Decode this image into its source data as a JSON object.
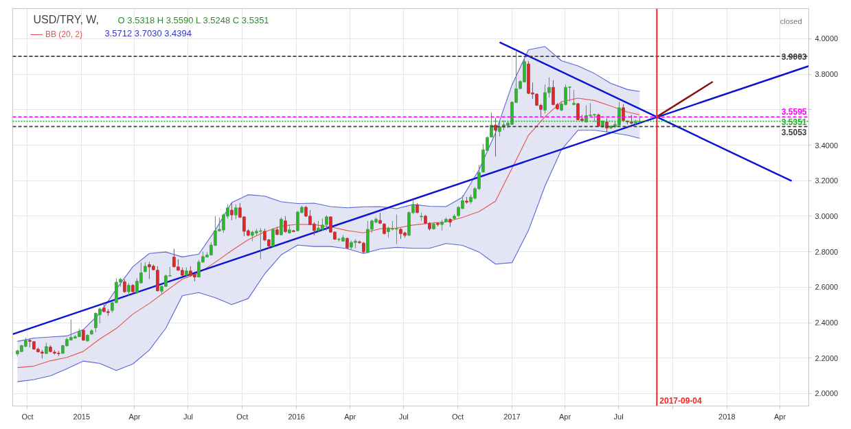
{
  "chart_data": {
    "type": "candlestick",
    "title": "USD/TRY, W,",
    "annotations": [
      "O 3.5318 H 3.5590 L 3.5248 C 3.5351",
      "3.5712 3.7030 3.4394",
      "closed"
    ],
    "x": [
      "2014-09-14",
      "2014-09-21",
      "2014-09-28",
      "2014-10-05",
      "2014-10-12",
      "2014-10-19",
      "2014-10-26",
      "2014-11-02",
      "2014-11-09",
      "2014-11-16",
      "2014-11-23",
      "2014-11-30",
      "2014-12-07",
      "2014-12-14",
      "2014-12-21",
      "2014-12-28",
      "2015-01-04",
      "2015-01-11",
      "2015-01-18",
      "2015-01-25",
      "2015-02-01",
      "2015-02-08",
      "2015-02-15",
      "2015-02-22",
      "2015-03-01",
      "2015-03-08",
      "2015-03-15",
      "2015-03-22",
      "2015-03-29",
      "2015-04-05",
      "2015-04-12",
      "2015-04-19",
      "2015-04-26",
      "2015-05-03",
      "2015-05-10",
      "2015-05-17",
      "2015-05-24",
      "2015-05-31",
      "2015-06-07",
      "2015-06-14",
      "2015-06-21",
      "2015-06-28",
      "2015-07-05",
      "2015-07-12",
      "2015-07-19",
      "2015-07-26",
      "2015-08-02",
      "2015-08-09",
      "2015-08-16",
      "2015-08-23",
      "2015-08-30",
      "2015-09-06",
      "2015-09-13",
      "2015-09-20",
      "2015-09-27",
      "2015-10-04",
      "2015-10-11",
      "2015-10-18",
      "2015-10-25",
      "2015-11-01",
      "2015-11-08",
      "2015-11-15",
      "2015-11-22",
      "2015-11-29",
      "2015-12-06",
      "2015-12-13",
      "2015-12-20",
      "2015-12-27",
      "2016-01-03",
      "2016-01-10",
      "2016-01-17",
      "2016-01-24",
      "2016-01-31",
      "2016-02-07",
      "2016-02-14",
      "2016-02-21",
      "2016-02-28",
      "2016-03-06",
      "2016-03-13",
      "2016-03-20",
      "2016-03-27",
      "2016-04-03",
      "2016-04-10",
      "2016-04-17",
      "2016-04-24",
      "2016-05-01",
      "2016-05-08",
      "2016-05-15",
      "2016-05-22",
      "2016-05-29",
      "2016-06-05",
      "2016-06-12",
      "2016-06-19",
      "2016-06-26",
      "2016-07-03",
      "2016-07-10",
      "2016-07-17",
      "2016-07-24",
      "2016-07-31",
      "2016-08-07",
      "2016-08-14",
      "2016-08-21",
      "2016-08-28",
      "2016-09-04",
      "2016-09-11",
      "2016-09-18",
      "2016-09-25",
      "2016-10-02",
      "2016-10-09",
      "2016-10-16",
      "2016-10-23",
      "2016-10-30",
      "2016-11-06",
      "2016-11-13",
      "2016-11-20",
      "2016-11-27",
      "2016-12-04",
      "2016-12-11",
      "2016-12-18",
      "2016-12-25",
      "2017-01-01",
      "2017-01-08",
      "2017-01-15",
      "2017-01-22",
      "2017-01-29",
      "2017-02-05",
      "2017-02-12",
      "2017-02-19",
      "2017-02-26",
      "2017-03-05",
      "2017-03-12",
      "2017-03-19",
      "2017-03-26",
      "2017-04-02",
      "2017-04-09",
      "2017-04-16",
      "2017-04-23",
      "2017-04-30",
      "2017-05-07",
      "2017-05-14",
      "2017-05-21",
      "2017-05-28",
      "2017-06-04",
      "2017-06-11",
      "2017-06-18",
      "2017-06-25",
      "2017-07-02",
      "2017-07-09",
      "2017-07-16",
      "2017-07-23",
      "2017-07-30",
      "2017-08-06"
    ],
    "ohlc": [
      [
        2.224,
        2.247,
        2.211,
        2.241
      ],
      [
        2.237,
        2.275,
        2.233,
        2.27
      ],
      [
        2.267,
        2.315,
        2.261,
        2.301
      ],
      [
        2.3,
        2.308,
        2.261,
        2.294
      ],
      [
        2.293,
        2.295,
        2.247,
        2.251
      ],
      [
        2.25,
        2.259,
        2.233,
        2.235
      ],
      [
        2.234,
        2.246,
        2.198,
        2.228
      ],
      [
        2.226,
        2.286,
        2.223,
        2.265
      ],
      [
        2.262,
        2.273,
        2.233,
        2.237
      ],
      [
        2.234,
        2.246,
        2.22,
        2.228
      ],
      [
        2.227,
        2.241,
        2.212,
        2.225
      ],
      [
        2.227,
        2.275,
        2.223,
        2.27
      ],
      [
        2.269,
        2.315,
        2.266,
        2.305
      ],
      [
        2.302,
        2.418,
        2.3,
        2.317
      ],
      [
        2.312,
        2.331,
        2.31,
        2.321
      ],
      [
        2.321,
        2.366,
        2.32,
        2.351
      ],
      [
        2.357,
        2.359,
        2.297,
        2.301
      ],
      [
        2.297,
        2.335,
        2.292,
        2.328
      ],
      [
        2.335,
        2.362,
        2.333,
        2.354
      ],
      [
        2.371,
        2.457,
        2.345,
        2.452
      ],
      [
        2.445,
        2.485,
        2.395,
        2.477
      ],
      [
        2.483,
        2.516,
        2.458,
        2.462
      ],
      [
        2.462,
        2.476,
        2.438,
        2.457
      ],
      [
        2.469,
        2.517,
        2.456,
        2.512
      ],
      [
        2.513,
        2.65,
        2.509,
        2.628
      ],
      [
        2.628,
        2.652,
        2.603,
        2.644
      ],
      [
        2.63,
        2.644,
        2.568,
        2.574
      ],
      [
        2.574,
        2.624,
        2.552,
        2.61
      ],
      [
        2.61,
        2.617,
        2.568,
        2.574
      ],
      [
        2.57,
        2.65,
        2.563,
        2.633
      ],
      [
        2.624,
        2.738,
        2.62,
        2.681
      ],
      [
        2.687,
        2.741,
        2.684,
        2.718
      ],
      [
        2.727,
        2.743,
        2.646,
        2.714
      ],
      [
        2.718,
        2.727,
        2.694,
        2.698
      ],
      [
        2.695,
        2.718,
        2.577,
        2.579
      ],
      [
        2.577,
        2.61,
        2.563,
        2.604
      ],
      [
        2.604,
        2.671,
        2.601,
        2.664
      ],
      [
        2.663,
        2.714,
        2.66,
        2.665
      ],
      [
        2.769,
        2.816,
        2.711,
        2.715
      ],
      [
        2.714,
        2.757,
        2.694,
        2.695
      ],
      [
        2.695,
        2.711,
        2.663,
        2.667
      ],
      [
        2.667,
        2.711,
        2.663,
        2.691
      ],
      [
        2.691,
        2.718,
        2.66,
        2.667
      ],
      [
        2.673,
        2.677,
        2.633,
        2.657
      ],
      [
        2.657,
        2.754,
        2.655,
        2.741
      ],
      [
        2.741,
        2.801,
        2.738,
        2.772
      ],
      [
        2.769,
        2.797,
        2.768,
        2.781
      ],
      [
        2.781,
        2.852,
        2.778,
        2.837
      ],
      [
        2.835,
        3.0,
        2.832,
        2.918
      ],
      [
        2.917,
        2.993,
        2.913,
        2.926
      ],
      [
        2.922,
        3.015,
        2.906,
        3.007
      ],
      [
        3.0,
        3.067,
        2.987,
        3.047
      ],
      [
        3.034,
        3.074,
        2.977,
        3.007
      ],
      [
        3.007,
        3.067,
        2.983,
        3.047
      ],
      [
        3.047,
        3.074,
        2.991,
        2.993
      ],
      [
        2.996,
        2.999,
        2.888,
        2.915
      ],
      [
        2.918,
        2.926,
        2.886,
        2.892
      ],
      [
        2.892,
        2.919,
        2.859,
        2.91
      ],
      [
        2.905,
        2.929,
        2.892,
        2.915
      ],
      [
        2.914,
        2.933,
        2.758,
        2.918
      ],
      [
        2.915,
        2.929,
        2.859,
        2.866
      ],
      [
        2.866,
        2.872,
        2.819,
        2.832
      ],
      [
        2.832,
        2.933,
        2.829,
        2.926
      ],
      [
        2.923,
        2.94,
        2.892,
        2.897
      ],
      [
        2.895,
        2.993,
        2.892,
        2.983
      ],
      [
        2.973,
        3.0,
        2.906,
        2.913
      ],
      [
        2.906,
        2.953,
        2.902,
        2.923
      ],
      [
        2.918,
        2.923,
        2.91,
        2.913
      ],
      [
        2.918,
        3.03,
        2.915,
        3.023
      ],
      [
        3.02,
        3.058,
        3.018,
        3.05
      ],
      [
        3.05,
        3.058,
        2.996,
        3.0
      ],
      [
        3.0,
        3.034,
        2.95,
        2.953
      ],
      [
        2.956,
        2.966,
        2.892,
        2.919
      ],
      [
        2.919,
        2.973,
        2.913,
        2.933
      ],
      [
        2.926,
        2.987,
        2.919,
        2.95
      ],
      [
        2.953,
        3.004,
        2.919,
        2.996
      ],
      [
        2.996,
        2.999,
        2.906,
        2.91
      ],
      [
        2.91,
        2.915,
        2.866,
        2.87
      ],
      [
        2.868,
        2.878,
        2.856,
        2.871
      ],
      [
        2.859,
        2.894,
        2.855,
        2.879
      ],
      [
        2.875,
        2.88,
        2.817,
        2.821
      ],
      [
        2.825,
        2.862,
        2.812,
        2.852
      ],
      [
        2.852,
        2.87,
        2.819,
        2.859
      ],
      [
        2.855,
        2.862,
        2.845,
        2.851
      ],
      [
        2.848,
        2.854,
        2.789,
        2.799
      ],
      [
        2.795,
        2.973,
        2.792,
        2.926
      ],
      [
        2.926,
        2.98,
        2.906,
        2.973
      ],
      [
        2.966,
        2.993,
        2.96,
        2.983
      ],
      [
        2.976,
        3.018,
        2.956,
        2.96
      ],
      [
        2.956,
        2.96,
        2.897,
        2.902
      ],
      [
        2.913,
        2.942,
        2.879,
        2.933
      ],
      [
        2.927,
        2.973,
        2.919,
        2.93
      ],
      [
        2.927,
        3.009,
        2.843,
        2.93
      ],
      [
        2.926,
        2.933,
        2.872,
        2.902
      ],
      [
        2.906,
        2.913,
        2.879,
        2.892
      ],
      [
        2.892,
        3.027,
        2.888,
        3.02
      ],
      [
        3.02,
        3.094,
        3.013,
        3.063
      ],
      [
        3.063,
        3.074,
        3.018,
        3.02
      ],
      [
        2.996,
        3.02,
        2.973,
        3.0
      ],
      [
        3.0,
        3.007,
        2.956,
        2.96
      ],
      [
        2.96,
        2.966,
        2.919,
        2.929
      ],
      [
        2.929,
        2.966,
        2.923,
        2.956
      ],
      [
        2.96,
        2.966,
        2.942,
        2.953
      ],
      [
        2.953,
        2.98,
        2.919,
        2.966
      ],
      [
        2.969,
        2.993,
        2.964,
        2.983
      ],
      [
        2.982,
        2.989,
        2.94,
        2.966
      ],
      [
        2.987,
        3.011,
        2.98,
        3.0
      ],
      [
        3.003,
        3.056,
        2.997,
        3.05
      ],
      [
        3.043,
        3.118,
        3.04,
        3.087
      ],
      [
        3.085,
        3.108,
        3.07,
        3.079
      ],
      [
        3.081,
        3.121,
        3.07,
        3.107
      ],
      [
        3.101,
        3.164,
        3.094,
        3.155
      ],
      [
        3.155,
        3.289,
        3.148,
        3.246
      ],
      [
        3.249,
        3.406,
        3.245,
        3.374
      ],
      [
        3.37,
        3.45,
        3.363,
        3.443
      ],
      [
        3.446,
        3.585,
        3.443,
        3.513
      ],
      [
        3.513,
        3.554,
        3.336,
        3.484
      ],
      [
        3.477,
        3.54,
        3.45,
        3.504
      ],
      [
        3.501,
        3.54,
        3.484,
        3.515
      ],
      [
        3.511,
        3.535,
        3.497,
        3.524
      ],
      [
        3.517,
        3.648,
        3.515,
        3.642
      ],
      [
        3.641,
        3.93,
        3.638,
        3.718
      ],
      [
        3.719,
        3.766,
        3.715,
        3.759
      ],
      [
        3.757,
        3.894,
        3.753,
        3.871
      ],
      [
        3.858,
        3.874,
        3.688,
        3.692
      ],
      [
        3.695,
        3.753,
        3.661,
        3.688
      ],
      [
        3.688,
        3.692,
        3.621,
        3.625
      ],
      [
        3.625,
        3.632,
        3.558,
        3.602
      ],
      [
        3.598,
        3.742,
        3.578,
        3.696
      ],
      [
        3.696,
        3.782,
        3.669,
        3.726
      ],
      [
        3.726,
        3.766,
        3.625,
        3.629
      ],
      [
        3.629,
        3.638,
        3.598,
        3.605
      ],
      [
        3.598,
        3.645,
        3.591,
        3.632
      ],
      [
        3.629,
        3.742,
        3.625,
        3.726
      ],
      [
        3.726,
        3.731,
        3.645,
        3.728
      ],
      [
        3.629,
        3.712,
        3.625,
        3.637
      ],
      [
        3.634,
        3.638,
        3.54,
        3.544
      ],
      [
        3.548,
        3.571,
        3.531,
        3.538
      ],
      [
        3.531,
        3.625,
        3.527,
        3.567
      ],
      [
        3.567,
        3.637,
        3.564,
        3.57
      ],
      [
        3.57,
        3.578,
        3.531,
        3.573
      ],
      [
        3.571,
        3.578,
        3.504,
        3.507
      ],
      [
        3.504,
        3.54,
        3.497,
        3.535
      ],
      [
        3.531,
        3.551,
        3.473,
        3.497
      ],
      [
        3.497,
        3.511,
        3.491,
        3.507
      ],
      [
        3.504,
        3.531,
        3.497,
        3.517
      ],
      [
        3.513,
        3.645,
        3.511,
        3.611
      ],
      [
        3.611,
        3.632,
        3.531,
        3.538
      ],
      [
        3.535,
        3.54,
        3.517,
        3.531
      ],
      [
        3.532,
        3.571,
        3.517,
        3.524
      ],
      [
        3.524,
        3.544,
        3.516,
        3.53
      ],
      [
        3.5318,
        3.559,
        3.5248,
        3.5351
      ]
    ],
    "colors": [
      "#2fb52f",
      "#2fb52f",
      "#2fb52f",
      "#d92b2b",
      "#d92b2b",
      "#d92b2b",
      "#d92b2b",
      "#2fb52f",
      "#d92b2b",
      "#d92b2b",
      "#d92b2b",
      "#2fb52f",
      "#2fb52f",
      "#2fb52f",
      "#2fb52f",
      "#2fb52f",
      "#d92b2b",
      "#2fb52f",
      "#2fb52f",
      "#2fb52f",
      "#2fb52f",
      "#d92b2b",
      "#d92b2b",
      "#2fb52f",
      "#2fb52f",
      "#2fb52f",
      "#d92b2b",
      "#2fb52f",
      "#d92b2b",
      "#2fb52f",
      "#2fb52f",
      "#2fb52f",
      "#d92b2b",
      "#d92b2b",
      "#d92b2b",
      "#2fb52f",
      "#2fb52f",
      "#2fb52f",
      "#d92b2b",
      "#d92b2b",
      "#d92b2b",
      "#2fb52f",
      "#d92b2b",
      "#d92b2b",
      "#2fb52f",
      "#2fb52f",
      "#2fb52f",
      "#2fb52f",
      "#2fb52f",
      "#2fb52f",
      "#2fb52f",
      "#2fb52f",
      "#d92b2b",
      "#2fb52f",
      "#d92b2b",
      "#d92b2b",
      "#d92b2b",
      "#2fb52f",
      "#2fb52f",
      "#2fb52f",
      "#d92b2b",
      "#d92b2b",
      "#2fb52f",
      "#d92b2b",
      "#2fb52f",
      "#d92b2b",
      "#2fb52f",
      "#d92b2b",
      "#2fb52f",
      "#2fb52f",
      "#d92b2b",
      "#d92b2b",
      "#d92b2b",
      "#2fb52f",
      "#2fb52f",
      "#2fb52f",
      "#d92b2b",
      "#d92b2b",
      "#2fb52f",
      "#2fb52f",
      "#d92b2b",
      "#2fb52f",
      "#2fb52f",
      "#d92b2b",
      "#d92b2b",
      "#2fb52f",
      "#2fb52f",
      "#2fb52f",
      "#d92b2b",
      "#d92b2b",
      "#2fb52f",
      "#2fb52f",
      "#2fb52f",
      "#d92b2b",
      "#d92b2b",
      "#2fb52f",
      "#2fb52f",
      "#d92b2b",
      "#2fb52f",
      "#d92b2b",
      "#d92b2b",
      "#2fb52f",
      "#d92b2b",
      "#2fb52f",
      "#2fb52f",
      "#d92b2b",
      "#2fb52f",
      "#2fb52f",
      "#2fb52f",
      "#d92b2b",
      "#2fb52f",
      "#2fb52f",
      "#2fb52f",
      "#2fb52f",
      "#2fb52f",
      "#2fb52f",
      "#d92b2b",
      "#2fb52f",
      "#2fb52f",
      "#2fb52f",
      "#2fb52f",
      "#2fb52f",
      "#2fb52f",
      "#2fb52f",
      "#d92b2b",
      "#d92b2b",
      "#d92b2b",
      "#d92b2b",
      "#2fb52f",
      "#2fb52f",
      "#d92b2b",
      "#d92b2b",
      "#2fb52f",
      "#2fb52f",
      "#2fb52f",
      "#2fb52f",
      "#d92b2b",
      "#d92b2b",
      "#2fb52f",
      "#2fb52f",
      "#2fb52f",
      "#d92b2b",
      "#2fb52f",
      "#d92b2b",
      "#2fb52f",
      "#2fb52f",
      "#2fb52f",
      "#d92b2b",
      "#d92b2b",
      "#d92b2b",
      "#2fb52f",
      "#2fb52f"
    ],
    "series": [
      {
        "name": "BB (20, 2)",
        "type": "line",
        "color": "#e5534b",
        "x": [
          "2014-09-14",
          "2014-10-12",
          "2014-11-09",
          "2014-12-07",
          "2015-01-04",
          "2015-02-01",
          "2015-03-01",
          "2015-03-29",
          "2015-04-26",
          "2015-05-24",
          "2015-06-21",
          "2015-07-19",
          "2015-08-16",
          "2015-09-13",
          "2015-10-11",
          "2015-11-08",
          "2015-12-06",
          "2016-01-03",
          "2016-01-31",
          "2016-02-28",
          "2016-03-27",
          "2016-04-24",
          "2016-05-22",
          "2016-06-19",
          "2016-07-17",
          "2016-08-14",
          "2016-09-11",
          "2016-10-09",
          "2016-11-06",
          "2016-12-04",
          "2017-01-01",
          "2017-01-29",
          "2017-02-26",
          "2017-03-26",
          "2017-04-23",
          "2017-05-21",
          "2017-06-18",
          "2017-07-16",
          "2017-08-06"
        ],
        "values": [
          2.146,
          2.155,
          2.185,
          2.204,
          2.238,
          2.308,
          2.367,
          2.448,
          2.508,
          2.577,
          2.645,
          2.68,
          2.74,
          2.806,
          2.867,
          2.912,
          2.944,
          2.954,
          2.952,
          2.94,
          2.919,
          2.906,
          2.929,
          2.933,
          2.95,
          2.96,
          2.968,
          2.993,
          3.026,
          3.085,
          3.27,
          3.456,
          3.56,
          3.645,
          3.665,
          3.652,
          3.621,
          3.587,
          3.571
        ],
        "lower": [
          2.067,
          2.079,
          2.1,
          2.14,
          2.183,
          2.17,
          2.13,
          2.167,
          2.245,
          2.368,
          2.552,
          2.569,
          2.54,
          2.502,
          2.536,
          2.675,
          2.782,
          2.837,
          2.829,
          2.829,
          2.817,
          2.79,
          2.815,
          2.824,
          2.819,
          2.819,
          2.846,
          2.835,
          2.798,
          2.73,
          2.738,
          2.92,
          3.17,
          3.375,
          3.484,
          3.484,
          3.472,
          3.456,
          3.439
        ],
        "upper": [
          2.294,
          2.313,
          2.319,
          2.325,
          2.361,
          2.453,
          2.589,
          2.715,
          2.79,
          2.798,
          2.77,
          2.786,
          2.921,
          3.077,
          3.121,
          3.113,
          3.081,
          3.071,
          3.073,
          3.054,
          3.047,
          3.053,
          3.054,
          3.042,
          3.066,
          3.056,
          3.054,
          3.107,
          3.262,
          3.47,
          3.74,
          3.938,
          3.956,
          3.876,
          3.847,
          3.804,
          3.748,
          3.714,
          3.703
        ]
      },
      {
        "type": "line",
        "color": "#5a63d8",
        "x": [
          "2014-09-14",
          "2014-10-12",
          "2014-11-09",
          "2014-12-07",
          "2015-01-04",
          "2015-02-01",
          "2015-03-01",
          "2015-03-29",
          "2015-04-26",
          "2015-05-24",
          "2015-06-21",
          "2015-07-19",
          "2015-08-16",
          "2015-09-13",
          "2015-10-11",
          "2015-11-08",
          "2015-12-06",
          "2016-01-03",
          "2016-01-31",
          "2016-02-28",
          "2016-03-27",
          "2016-04-24",
          "2016-05-22",
          "2016-06-19",
          "2016-07-17",
          "2016-08-14",
          "2016-09-11",
          "2016-10-09",
          "2016-11-06",
          "2016-12-04",
          "2017-01-01",
          "2017-01-29",
          "2017-02-26",
          "2017-03-26",
          "2017-04-23",
          "2017-05-21",
          "2017-06-18",
          "2017-07-16",
          "2017-08-06"
        ],
        "values": [
          2.294,
          2.313,
          2.319,
          2.325,
          2.361,
          2.453,
          2.589,
          2.715,
          2.79,
          2.798,
          2.77,
          2.786,
          2.921,
          3.077,
          3.121,
          3.113,
          3.081,
          3.071,
          3.073,
          3.054,
          3.047,
          3.053,
          3.054,
          3.042,
          3.066,
          3.056,
          3.054,
          3.107,
          3.262,
          3.47,
          3.74,
          3.938,
          3.956,
          3.876,
          3.847,
          3.804,
          3.748,
          3.714,
          3.703
        ]
      },
      {
        "type": "line",
        "color": "#5a63d8",
        "x": [
          "2014-09-14",
          "2014-10-12",
          "2014-11-09",
          "2014-12-07",
          "2015-01-04",
          "2015-02-01",
          "2015-03-01",
          "2015-03-29",
          "2015-04-26",
          "2015-05-24",
          "2015-06-21",
          "2015-07-19",
          "2015-08-16",
          "2015-09-13",
          "2015-10-11",
          "2015-11-08",
          "2015-12-06",
          "2016-01-03",
          "2016-01-31",
          "2016-02-28",
          "2016-03-27",
          "2016-04-24",
          "2016-05-22",
          "2016-06-19",
          "2016-07-17",
          "2016-08-14",
          "2016-09-11",
          "2016-10-09",
          "2016-11-06",
          "2016-12-04",
          "2017-01-01",
          "2017-01-29",
          "2017-02-26",
          "2017-03-26",
          "2017-04-23",
          "2017-05-21",
          "2017-06-18",
          "2017-07-16",
          "2017-08-06"
        ],
        "values": [
          2.067,
          2.079,
          2.1,
          2.14,
          2.183,
          2.17,
          2.13,
          2.167,
          2.245,
          2.368,
          2.552,
          2.569,
          2.54,
          2.502,
          2.536,
          2.675,
          2.782,
          2.837,
          2.829,
          2.829,
          2.817,
          2.79,
          2.815,
          2.824,
          2.819,
          2.819,
          2.846,
          2.835,
          2.798,
          2.73,
          2.738,
          2.92,
          3.17,
          3.375,
          3.484,
          3.484,
          3.472,
          3.456,
          3.439
        ]
      },
      {
        "type": "line",
        "color": "#0a14d2",
        "x": [
          "2014-09-06",
          "2018-05-20"
        ],
        "values": [
          2.335,
          3.846
        ]
      },
      {
        "type": "line",
        "color": "#0a14d2",
        "x": [
          "2016-12-11",
          "2018-04-21"
        ],
        "values": [
          3.98,
          3.198
        ]
      },
      {
        "type": "line",
        "color": "#8b1111",
        "x": [
          "2017-09-04",
          "2017-12-08"
        ],
        "values": [
          3.56,
          3.758
        ]
      }
    ],
    "ref_lines": [
      {
        "axis": "y",
        "value": 3.9003,
        "label": "3.9003",
        "color": "#3c3c3c",
        "line_style": "dashed"
      },
      {
        "axis": "y",
        "value": 3.5595,
        "label": "3.5595",
        "color": "#ff00ff",
        "line_style": "dashed"
      },
      {
        "axis": "y",
        "value": 3.5351,
        "label": "3.5351",
        "color": "#1fb51f",
        "line_style": "dotted"
      },
      {
        "axis": "y",
        "value": 3.5053,
        "label": "3.5053",
        "color": "#3c3c3c",
        "line_style": "dashed"
      },
      {
        "axis": "x",
        "value": "2017-09-04",
        "label": "2017-09-04",
        "color": "#ff1f1f",
        "line_style": "solid"
      }
    ],
    "xlim": [
      "2014-09-06",
      "2018-05-20"
    ],
    "ylim": [
      1.93,
      4.17
    ],
    "xticks": [
      {
        "value": "2014-10-01",
        "label": "Oct"
      },
      {
        "value": "2015-01-01",
        "label": "2015"
      },
      {
        "value": "2015-04-01",
        "label": "Apr"
      },
      {
        "value": "2015-07-01",
        "label": "Jul"
      },
      {
        "value": "2015-10-01",
        "label": "Oct"
      },
      {
        "value": "2016-01-01",
        "label": "2016"
      },
      {
        "value": "2016-04-01",
        "label": "Apr"
      },
      {
        "value": "2016-07-01",
        "label": "Jul"
      },
      {
        "value": "2016-10-01",
        "label": "Oct"
      },
      {
        "value": "2017-01-01",
        "label": "2017"
      },
      {
        "value": "2017-04-01",
        "label": "Apr"
      },
      {
        "value": "2017-07-01",
        "label": "Jul"
      },
      {
        "value": "2017-10-01",
        "label": null
      },
      {
        "value": "2018-01-01",
        "label": "2018"
      },
      {
        "value": "2018-04-01",
        "label": "Apr"
      }
    ],
    "yticks": [
      {
        "value": 2,
        "label": "2.0000"
      },
      {
        "value": 2.2,
        "label": "2.2000"
      },
      {
        "value": 2.4,
        "label": "2.4000"
      },
      {
        "value": 2.6,
        "label": "2.6000"
      },
      {
        "value": 2.8,
        "label": "2.8000"
      },
      {
        "value": 3,
        "label": "3.0000"
      },
      {
        "value": 3.2,
        "label": "3.2000"
      },
      {
        "value": 3.4,
        "label": "3.4000"
      },
      {
        "value": 3.6,
        "label": null
      },
      {
        "value": 3.8,
        "label": "3.8000"
      },
      {
        "value": 4,
        "label": "4.0000"
      }
    ],
    "grid": true,
    "legend": "top left"
  }
}
